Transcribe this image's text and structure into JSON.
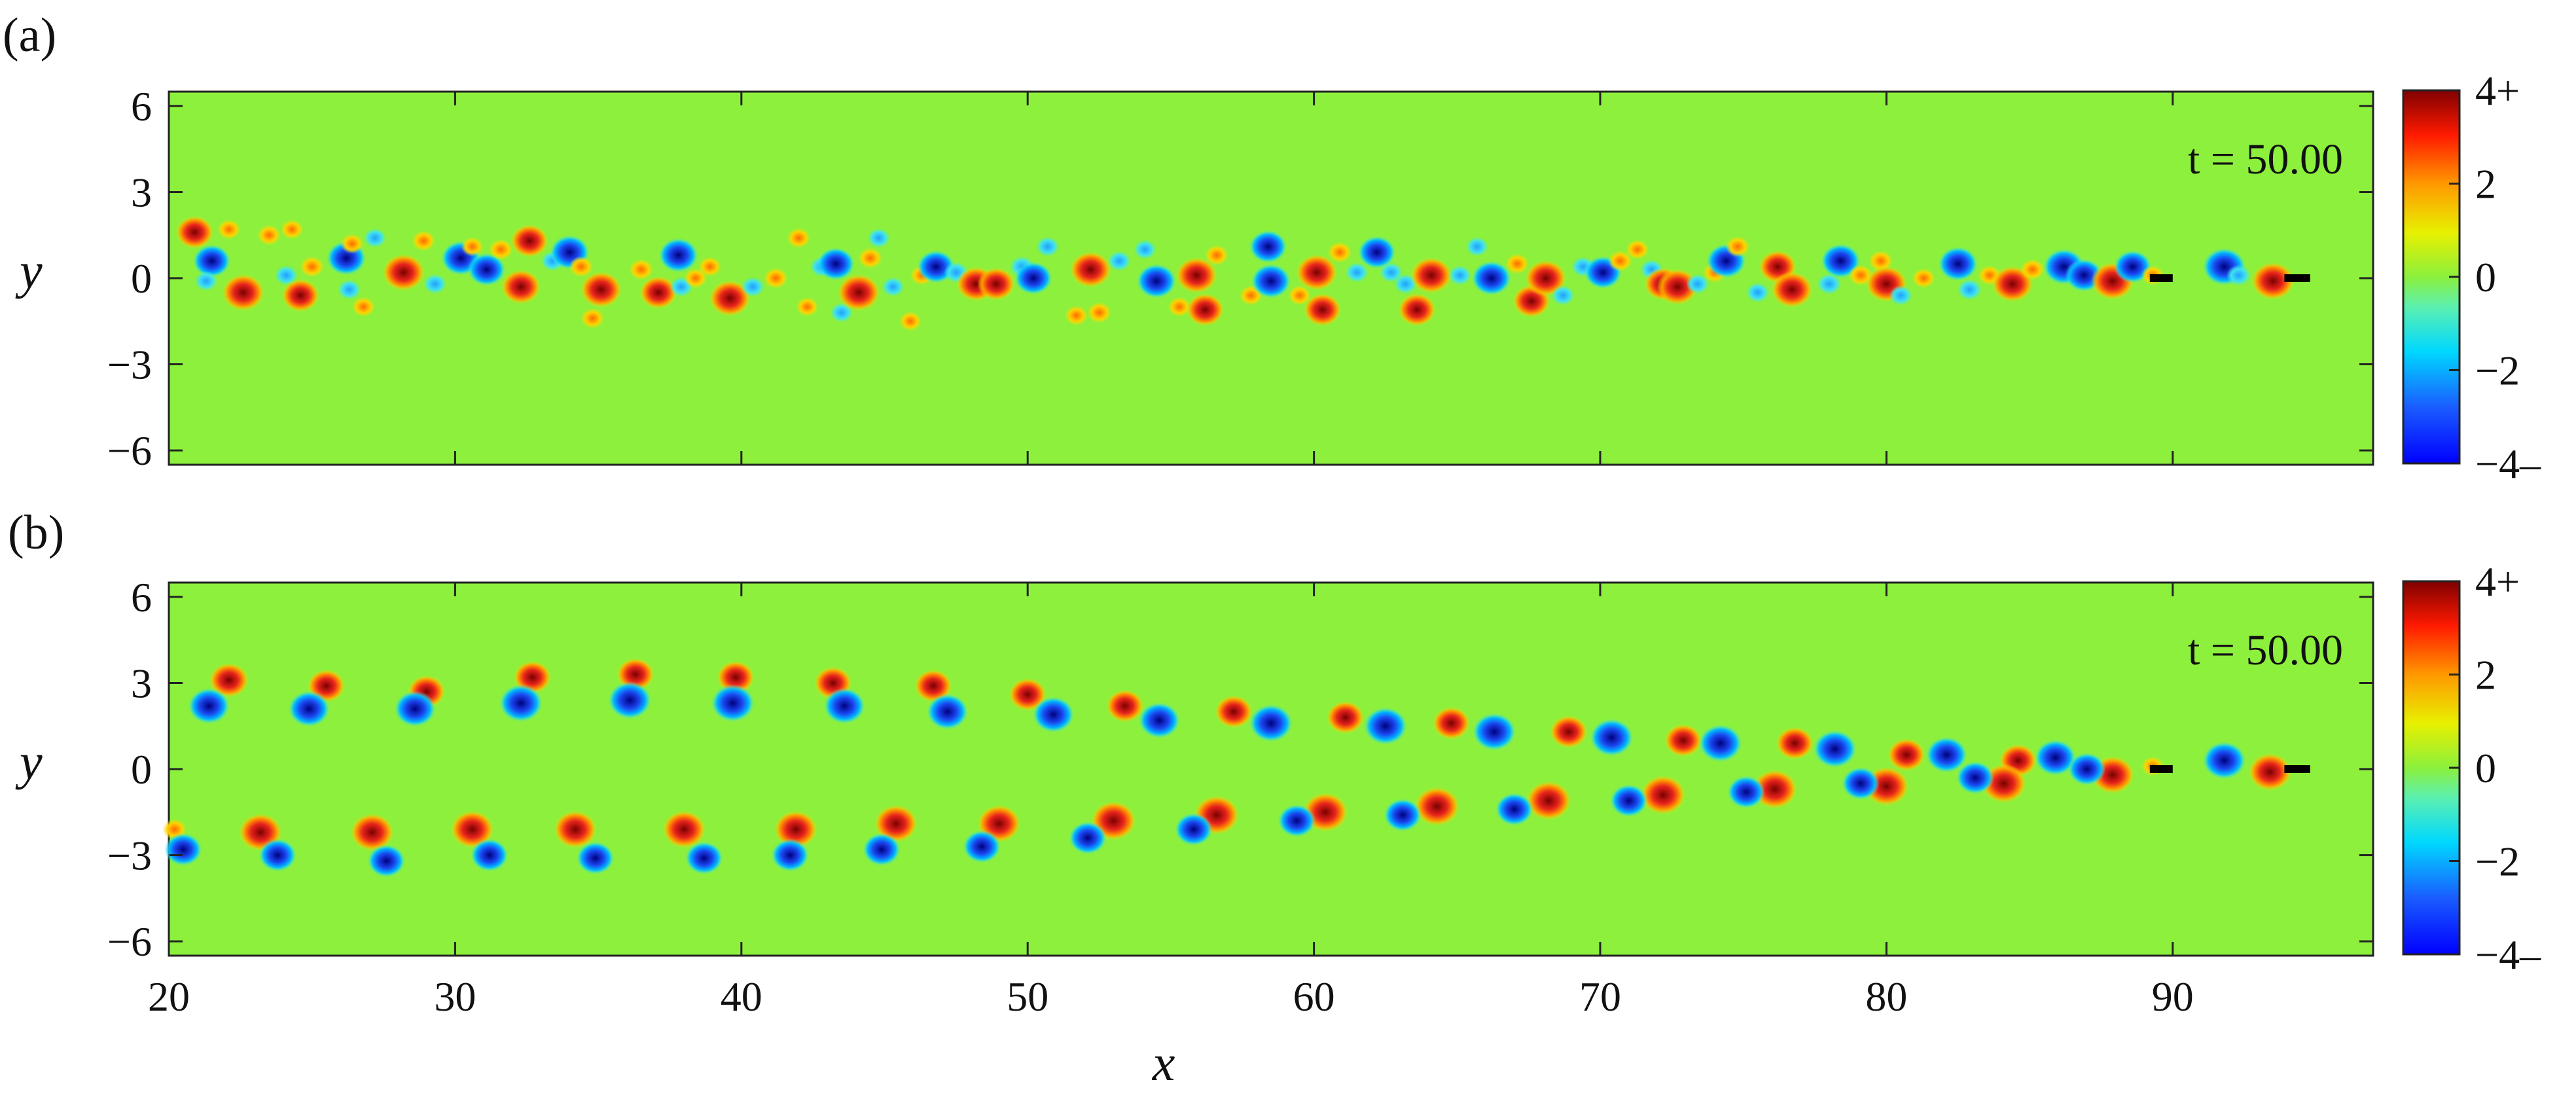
{
  "figure": {
    "panels": [
      {
        "label": "(a)",
        "time_label": "t = 50.00"
      },
      {
        "label": "(b)",
        "time_label": "t = 50.00"
      }
    ],
    "xlabel": "x",
    "ylabel": "y"
  },
  "colors": {
    "background_field": "#8cf03c",
    "positive": "#e8231c",
    "positive_core": "#7a0000",
    "negative": "#1a46f0",
    "negative_core": "#000080",
    "plate": "#000000"
  },
  "chart_data": [
    {
      "type": "heatmap",
      "panel": "a",
      "time_label": "t = 50.00",
      "xlabel": "",
      "ylabel": "y",
      "xlim": [
        20,
        97
      ],
      "ylim": [
        -6.5,
        6.5
      ],
      "xticks": [
        "20",
        "30",
        "40",
        "50",
        "60",
        "70",
        "80",
        "90"
      ],
      "yticks": [
        "6",
        "3",
        "0",
        "−3",
        "−6"
      ],
      "colorbar": {
        "range": [
          -4,
          4
        ],
        "ticks": [
          "4+",
          "2",
          "0",
          "−2",
          "−4–"
        ]
      },
      "plates": [
        {
          "x0": 89.2,
          "x1": 90.0,
          "y": 0
        },
        {
          "x0": 93.9,
          "x1": 94.8,
          "y": 0
        }
      ],
      "vortices": [
        [
          20.9,
          1.6,
          3.0
        ],
        [
          21.5,
          0.6,
          -3.0
        ],
        [
          21.3,
          -0.1,
          -1.5
        ],
        [
          22.1,
          1.7,
          1.6
        ],
        [
          22.6,
          -0.5,
          3.5
        ],
        [
          23.5,
          1.5,
          1.8
        ],
        [
          24.1,
          0.1,
          -1.6
        ],
        [
          24.3,
          1.7,
          1.5
        ],
        [
          24.6,
          -0.6,
          3.0
        ],
        [
          25.0,
          0.4,
          2.0
        ],
        [
          26.2,
          0.7,
          -3.2
        ],
        [
          26.4,
          1.2,
          1.6
        ],
        [
          26.3,
          -0.4,
          -1.6
        ],
        [
          26.8,
          -1.0,
          1.6
        ],
        [
          27.2,
          1.4,
          -1.4
        ],
        [
          28.2,
          0.2,
          3.5
        ],
        [
          28.9,
          1.3,
          1.8
        ],
        [
          29.3,
          -0.2,
          -1.6
        ],
        [
          30.2,
          0.7,
          -3.2
        ],
        [
          30.6,
          1.1,
          1.4
        ],
        [
          31.1,
          0.3,
          -3.0
        ],
        [
          31.6,
          1.0,
          2.0
        ],
        [
          32.3,
          -0.3,
          3.2
        ],
        [
          32.6,
          1.3,
          3.0
        ],
        [
          33.4,
          0.6,
          -1.6
        ],
        [
          34.0,
          0.9,
          -3.2
        ],
        [
          34.4,
          0.4,
          2.0
        ],
        [
          34.8,
          -1.4,
          1.8
        ],
        [
          35.1,
          -0.4,
          3.4
        ],
        [
          36.5,
          0.3,
          2.0
        ],
        [
          37.1,
          -0.5,
          3.0
        ],
        [
          37.8,
          0.8,
          -3.2
        ],
        [
          37.9,
          -0.3,
          -1.6
        ],
        [
          38.4,
          0.0,
          1.6
        ],
        [
          38.9,
          0.4,
          1.6
        ],
        [
          39.6,
          -0.7,
          3.4
        ],
        [
          40.4,
          -0.3,
          -1.6
        ],
        [
          41.2,
          0.0,
          2.0
        ],
        [
          42.0,
          1.4,
          1.8
        ],
        [
          42.3,
          -1.0,
          1.4
        ],
        [
          42.8,
          0.4,
          -1.6
        ],
        [
          43.3,
          0.5,
          -3.0
        ],
        [
          43.5,
          -1.2,
          -1.4
        ],
        [
          44.1,
          -0.5,
          3.5
        ],
        [
          44.5,
          0.7,
          2.0
        ],
        [
          44.8,
          1.4,
          -1.4
        ],
        [
          45.3,
          -0.3,
          -1.4
        ],
        [
          45.9,
          -1.5,
          1.4
        ],
        [
          46.3,
          0.1,
          1.6
        ],
        [
          46.8,
          0.4,
          -3.0
        ],
        [
          47.5,
          0.2,
          -2.0
        ],
        [
          48.2,
          -0.2,
          3.2
        ],
        [
          48.9,
          -0.2,
          3.0
        ],
        [
          49.8,
          0.4,
          -2.0
        ],
        [
          50.2,
          0.0,
          -3.0
        ],
        [
          50.7,
          1.1,
          -1.6
        ],
        [
          51.7,
          -1.3,
          1.6
        ],
        [
          52.2,
          0.3,
          3.4
        ],
        [
          52.5,
          -1.2,
          2.0
        ],
        [
          53.2,
          0.6,
          -1.6
        ],
        [
          54.1,
          1.0,
          -1.4
        ],
        [
          54.5,
          -0.1,
          -3.2
        ],
        [
          55.3,
          -1.0,
          1.6
        ],
        [
          55.9,
          0.1,
          3.4
        ],
        [
          56.2,
          -1.1,
          3.0
        ],
        [
          56.6,
          0.8,
          1.8
        ],
        [
          57.8,
          -0.6,
          1.6
        ],
        [
          58.4,
          1.1,
          -3.0
        ],
        [
          58.5,
          -0.1,
          -3.2
        ],
        [
          59.5,
          -0.6,
          1.6
        ],
        [
          60.1,
          0.2,
          3.4
        ],
        [
          60.3,
          -1.1,
          3.0
        ],
        [
          60.9,
          0.9,
          2.0
        ],
        [
          61.5,
          0.2,
          -1.6
        ],
        [
          62.2,
          0.9,
          -3.0
        ],
        [
          62.7,
          0.2,
          -1.6
        ],
        [
          63.2,
          -0.2,
          -1.6
        ],
        [
          63.6,
          -1.1,
          3.0
        ],
        [
          64.1,
          0.1,
          3.4
        ],
        [
          65.1,
          0.1,
          -1.5
        ],
        [
          65.7,
          1.1,
          -1.4
        ],
        [
          66.2,
          0.0,
          -3.2
        ],
        [
          67.1,
          0.5,
          1.8
        ],
        [
          67.6,
          -0.8,
          3.0
        ],
        [
          68.1,
          0.0,
          3.4
        ],
        [
          68.7,
          -0.6,
          -1.6
        ],
        [
          69.4,
          0.4,
          -1.6
        ],
        [
          70.1,
          0.2,
          -3.0
        ],
        [
          70.7,
          0.6,
          2.0
        ],
        [
          71.3,
          1.0,
          1.6
        ],
        [
          71.8,
          0.3,
          -1.6
        ],
        [
          72.2,
          -0.2,
          3.0
        ],
        [
          72.7,
          -0.3,
          3.4
        ],
        [
          73.4,
          -0.2,
          -1.6
        ],
        [
          74.0,
          0.2,
          1.8
        ],
        [
          74.4,
          0.6,
          -3.2
        ],
        [
          74.8,
          1.1,
          2.0
        ],
        [
          75.5,
          -0.5,
          -1.6
        ],
        [
          76.2,
          0.4,
          3.0
        ],
        [
          76.7,
          -0.4,
          3.4
        ],
        [
          78.0,
          -0.2,
          -2.0
        ],
        [
          78.4,
          0.6,
          -3.2
        ],
        [
          79.1,
          0.1,
          2.0
        ],
        [
          79.8,
          0.6,
          2.0
        ],
        [
          80.0,
          -0.2,
          3.4
        ],
        [
          80.5,
          -0.6,
          -1.6
        ],
        [
          81.3,
          0.0,
          1.6
        ],
        [
          82.5,
          0.5,
          -3.2
        ],
        [
          82.9,
          -0.4,
          -2.0
        ],
        [
          83.6,
          0.1,
          1.6
        ],
        [
          84.4,
          -0.2,
          3.4
        ],
        [
          85.1,
          0.3,
          2.0
        ],
        [
          86.2,
          0.4,
          -3.4
        ],
        [
          86.9,
          0.1,
          -3.0
        ],
        [
          87.9,
          -0.1,
          3.6
        ],
        [
          88.6,
          0.4,
          -3.0
        ],
        [
          89.3,
          0.1,
          1.5
        ],
        [
          91.8,
          0.4,
          -3.6
        ],
        [
          92.3,
          0.1,
          -2.0
        ],
        [
          93.5,
          -0.1,
          3.6
        ]
      ]
    },
    {
      "type": "heatmap",
      "panel": "b",
      "time_label": "t = 50.00",
      "xlabel": "x",
      "ylabel": "y",
      "xlim": [
        20,
        97
      ],
      "ylim": [
        -6.5,
        6.5
      ],
      "xticks": [
        "20",
        "30",
        "40",
        "50",
        "60",
        "70",
        "80",
        "90"
      ],
      "yticks": [
        "6",
        "3",
        "0",
        "−3",
        "−6"
      ],
      "colorbar": {
        "range": [
          -4,
          4
        ],
        "ticks": [
          "4+",
          "2",
          "0",
          "−2",
          "−4–"
        ]
      },
      "plates": [
        {
          "x0": 89.2,
          "x1": 90.0,
          "y": 0
        },
        {
          "x0": 93.9,
          "x1": 94.8,
          "y": 0
        }
      ],
      "vortices": [
        [
          22.1,
          3.1,
          3.2
        ],
        [
          21.4,
          2.2,
          -3.4
        ],
        [
          25.5,
          2.9,
          3.0
        ],
        [
          24.9,
          2.1,
          -3.4
        ],
        [
          29.0,
          2.7,
          3.0
        ],
        [
          28.6,
          2.1,
          -3.4
        ],
        [
          32.7,
          3.2,
          3.0
        ],
        [
          32.3,
          2.3,
          -3.6
        ],
        [
          36.3,
          3.3,
          3.0
        ],
        [
          36.1,
          2.4,
          -3.6
        ],
        [
          39.8,
          3.2,
          3.0
        ],
        [
          39.7,
          2.3,
          -3.6
        ],
        [
          43.2,
          3.0,
          3.0
        ],
        [
          43.6,
          2.2,
          -3.4
        ],
        [
          46.7,
          2.9,
          3.0
        ],
        [
          47.2,
          2.0,
          -3.4
        ],
        [
          50.0,
          2.6,
          3.0
        ],
        [
          50.9,
          1.9,
          -3.4
        ],
        [
          53.4,
          2.2,
          3.0
        ],
        [
          54.6,
          1.7,
          -3.4
        ],
        [
          57.2,
          2.0,
          3.0
        ],
        [
          58.5,
          1.6,
          -3.6
        ],
        [
          61.1,
          1.8,
          3.0
        ],
        [
          62.5,
          1.5,
          -3.6
        ],
        [
          64.8,
          1.6,
          3.0
        ],
        [
          66.3,
          1.3,
          -3.6
        ],
        [
          68.9,
          1.3,
          3.0
        ],
        [
          70.4,
          1.1,
          -3.6
        ],
        [
          72.9,
          1.0,
          3.0
        ],
        [
          74.2,
          0.9,
          -3.6
        ],
        [
          76.8,
          0.9,
          3.0
        ],
        [
          78.2,
          0.7,
          -3.6
        ],
        [
          80.7,
          0.5,
          3.0
        ],
        [
          82.1,
          0.5,
          -3.4
        ],
        [
          84.6,
          0.3,
          3.0
        ],
        [
          85.9,
          0.4,
          -3.4
        ],
        [
          20.2,
          -2.1,
          2.0
        ],
        [
          20.5,
          -2.8,
          -3.0
        ],
        [
          23.2,
          -2.2,
          3.6
        ],
        [
          23.8,
          -3.0,
          -3.0
        ],
        [
          27.1,
          -2.2,
          3.6
        ],
        [
          27.6,
          -3.2,
          -3.0
        ],
        [
          30.6,
          -2.1,
          3.6
        ],
        [
          31.2,
          -3.0,
          -3.0
        ],
        [
          34.2,
          -2.1,
          3.6
        ],
        [
          34.9,
          -3.1,
          -3.0
        ],
        [
          38.0,
          -2.1,
          3.6
        ],
        [
          38.7,
          -3.1,
          -3.0
        ],
        [
          41.9,
          -2.1,
          3.6
        ],
        [
          41.7,
          -3.0,
          -3.0
        ],
        [
          45.4,
          -1.9,
          3.6
        ],
        [
          44.9,
          -2.8,
          -3.0
        ],
        [
          49.0,
          -1.9,
          3.6
        ],
        [
          48.4,
          -2.7,
          -3.0
        ],
        [
          53.0,
          -1.8,
          3.8
        ],
        [
          52.1,
          -2.4,
          -3.0
        ],
        [
          56.6,
          -1.6,
          3.8
        ],
        [
          55.8,
          -2.1,
          -3.0
        ],
        [
          60.4,
          -1.5,
          3.8
        ],
        [
          59.4,
          -1.8,
          -3.0
        ],
        [
          64.3,
          -1.3,
          3.8
        ],
        [
          63.1,
          -1.6,
          -3.0
        ],
        [
          68.2,
          -1.1,
          3.8
        ],
        [
          67.0,
          -1.4,
          -3.0
        ],
        [
          72.2,
          -0.9,
          3.8
        ],
        [
          71.0,
          -1.1,
          -3.0
        ],
        [
          76.1,
          -0.7,
          3.8
        ],
        [
          75.1,
          -0.8,
          -3.0
        ],
        [
          80.0,
          -0.6,
          3.8
        ],
        [
          79.1,
          -0.5,
          -3.0
        ],
        [
          84.1,
          -0.5,
          3.8
        ],
        [
          83.1,
          -0.3,
          -3.0
        ],
        [
          87.9,
          -0.2,
          3.6
        ],
        [
          87.0,
          0.0,
          -3.0
        ],
        [
          91.8,
          0.3,
          -3.6
        ],
        [
          93.4,
          -0.1,
          3.6
        ],
        [
          89.3,
          0.1,
          1.5
        ]
      ]
    }
  ]
}
